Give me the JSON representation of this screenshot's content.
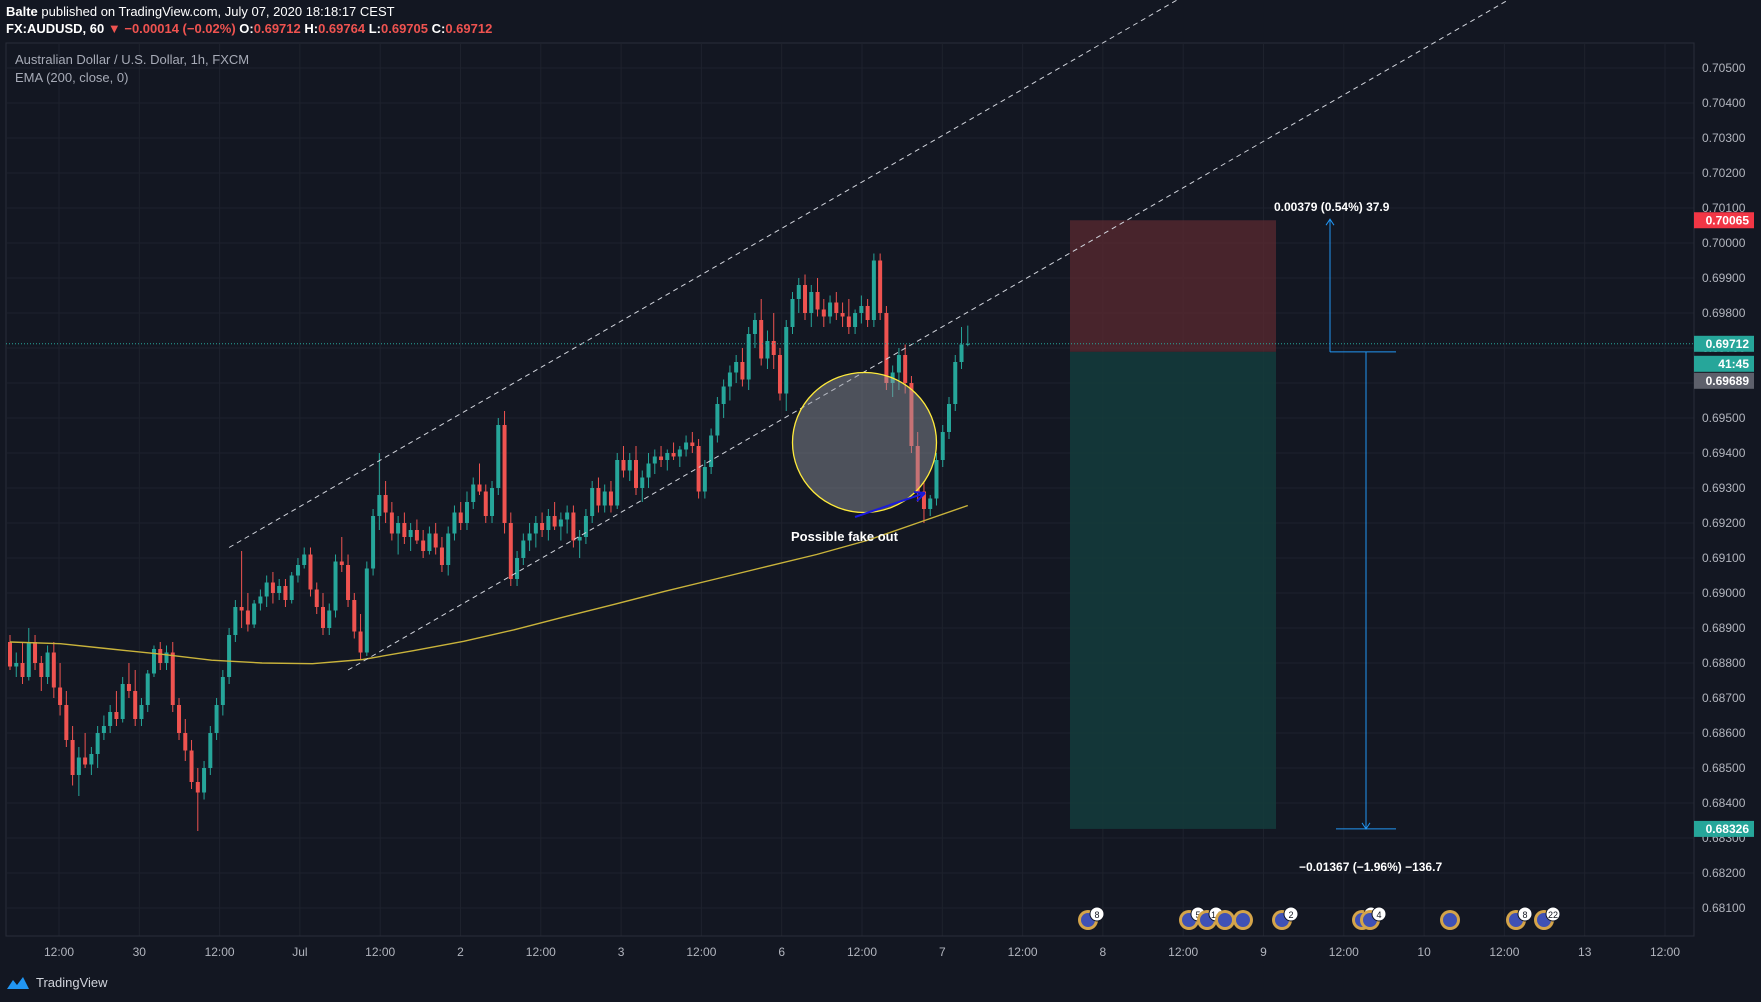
{
  "header": {
    "author": "Balte",
    "published_text": "published on TradingView.com, July 07, 2020 18:18:17 CEST",
    "symbol": "FX:AUDUSD, 60",
    "change": "▼ −0.00014 (−0.02%)",
    "o_label": "O:",
    "o_value": "0.69712",
    "h_label": "H:",
    "h_value": "0.69764",
    "l_label": "L:",
    "l_value": "0.69705",
    "c_label": "C:",
    "c_value": "0.69712"
  },
  "legend": {
    "title": "Australian Dollar / U.S. Dollar, 1h, FXCM",
    "indicator": "EMA (200, close, 0)"
  },
  "footer": {
    "brand": "TradingView"
  },
  "colors": {
    "background": "#131722",
    "up": "#26a69a",
    "down": "#ef5350",
    "ema": "#c9b33b",
    "grid": "#1e222d",
    "stop_zone": "#5b2a30",
    "target_zone": "#143c3c",
    "circle": "#ffeb3b",
    "arrow": "#1a1adb",
    "measure": "#2196f3"
  },
  "chart_data": {
    "type": "candlestick",
    "title": "Australian Dollar / U.S. Dollar, 1h, FXCM",
    "y_axis": {
      "range": [
        0.68075,
        0.7057
      ],
      "ticks": [
        "0.70500",
        "0.70400",
        "0.70300",
        "0.70200",
        "0.70100",
        "0.70000",
        "0.69900",
        "0.69800",
        "0.69700",
        "0.69600",
        "0.69500",
        "0.69400",
        "0.69300",
        "0.69200",
        "0.69100",
        "0.69000",
        "0.68900",
        "0.68800",
        "0.68700",
        "0.68600",
        "0.68500",
        "0.68400",
        "0.68300",
        "0.68200",
        "0.68100"
      ]
    },
    "x_axis": {
      "labels": [
        "12:00",
        "30",
        "12:00",
        "Jul",
        "12:00",
        "2",
        "12:00",
        "3",
        "12:00",
        "6",
        "12:00",
        "7",
        "12:00",
        "8",
        "12:00",
        "9",
        "12:00",
        "10",
        "12:00",
        "13",
        "12:00"
      ]
    },
    "price_labels": [
      {
        "value": "0.70065",
        "kind": "stop"
      },
      {
        "value": "0.69712",
        "kind": "last"
      },
      {
        "value": "41:45",
        "kind": "countdown"
      },
      {
        "value": "0.69689",
        "kind": "entry"
      },
      {
        "value": "0.68326",
        "kind": "target"
      }
    ],
    "candles": [
      [
        0.6886,
        0.6888,
        0.6878,
        0.6879
      ],
      [
        0.6879,
        0.6883,
        0.6876,
        0.688
      ],
      [
        0.688,
        0.6886,
        0.6874,
        0.6876
      ],
      [
        0.6876,
        0.689,
        0.6875,
        0.6886
      ],
      [
        0.6886,
        0.6888,
        0.6878,
        0.688
      ],
      [
        0.688,
        0.6882,
        0.6872,
        0.6876
      ],
      [
        0.6876,
        0.6885,
        0.6874,
        0.6883
      ],
      [
        0.6883,
        0.6886,
        0.687,
        0.6873
      ],
      [
        0.6873,
        0.688,
        0.6865,
        0.6868
      ],
      [
        0.6868,
        0.6872,
        0.6856,
        0.6858
      ],
      [
        0.6858,
        0.6862,
        0.6845,
        0.6848
      ],
      [
        0.6848,
        0.6856,
        0.6842,
        0.6853
      ],
      [
        0.6853,
        0.686,
        0.685,
        0.6851
      ],
      [
        0.6851,
        0.6856,
        0.6848,
        0.6854
      ],
      [
        0.6854,
        0.6862,
        0.685,
        0.686
      ],
      [
        0.686,
        0.6865,
        0.6858,
        0.6862
      ],
      [
        0.6862,
        0.6868,
        0.686,
        0.6866
      ],
      [
        0.6866,
        0.6872,
        0.6862,
        0.6864
      ],
      [
        0.6864,
        0.6876,
        0.6863,
        0.6874
      ],
      [
        0.6874,
        0.688,
        0.687,
        0.6872
      ],
      [
        0.6872,
        0.6878,
        0.6862,
        0.6864
      ],
      [
        0.6864,
        0.687,
        0.6862,
        0.6868
      ],
      [
        0.6868,
        0.6878,
        0.6866,
        0.6877
      ],
      [
        0.6877,
        0.6885,
        0.6876,
        0.6884
      ],
      [
        0.6884,
        0.6886,
        0.6878,
        0.688
      ],
      [
        0.688,
        0.6885,
        0.6878,
        0.6883
      ],
      [
        0.6883,
        0.6886,
        0.6866,
        0.6868
      ],
      [
        0.6868,
        0.687,
        0.6858,
        0.686
      ],
      [
        0.686,
        0.6864,
        0.6852,
        0.6855
      ],
      [
        0.6855,
        0.6858,
        0.6844,
        0.6846
      ],
      [
        0.6846,
        0.685,
        0.6832,
        0.6843
      ],
      [
        0.6843,
        0.6852,
        0.6841,
        0.685
      ],
      [
        0.685,
        0.6862,
        0.6848,
        0.686
      ],
      [
        0.686,
        0.687,
        0.6858,
        0.6868
      ],
      [
        0.6868,
        0.6878,
        0.6865,
        0.6876
      ],
      [
        0.6876,
        0.689,
        0.6874,
        0.6888
      ],
      [
        0.6888,
        0.6898,
        0.6886,
        0.6896
      ],
      [
        0.6896,
        0.6912,
        0.689,
        0.6895
      ],
      [
        0.6895,
        0.69,
        0.6889,
        0.6891
      ],
      [
        0.6891,
        0.6898,
        0.689,
        0.6897
      ],
      [
        0.6897,
        0.6901,
        0.6895,
        0.6899
      ],
      [
        0.6899,
        0.6905,
        0.6896,
        0.6903
      ],
      [
        0.6903,
        0.6906,
        0.6897,
        0.69
      ],
      [
        0.69,
        0.6904,
        0.6898,
        0.6902
      ],
      [
        0.6902,
        0.6904,
        0.6896,
        0.6898
      ],
      [
        0.6898,
        0.6906,
        0.6897,
        0.6905
      ],
      [
        0.6905,
        0.691,
        0.6903,
        0.6908
      ],
      [
        0.6908,
        0.6913,
        0.6907,
        0.6911
      ],
      [
        0.6911,
        0.6913,
        0.6899,
        0.6901
      ],
      [
        0.6901,
        0.6903,
        0.6894,
        0.6896
      ],
      [
        0.6896,
        0.69,
        0.6888,
        0.689
      ],
      [
        0.689,
        0.6897,
        0.6888,
        0.6895
      ],
      [
        0.6895,
        0.6911,
        0.6893,
        0.6909
      ],
      [
        0.6909,
        0.6916,
        0.6906,
        0.6908
      ],
      [
        0.6908,
        0.6911,
        0.6896,
        0.6898
      ],
      [
        0.6898,
        0.69,
        0.6887,
        0.6889
      ],
      [
        0.6889,
        0.6894,
        0.6881,
        0.6883
      ],
      [
        0.6883,
        0.6909,
        0.6882,
        0.6907
      ],
      [
        0.6907,
        0.6924,
        0.6905,
        0.6922
      ],
      [
        0.6922,
        0.694,
        0.6918,
        0.6928
      ],
      [
        0.6928,
        0.6932,
        0.692,
        0.6923
      ],
      [
        0.6923,
        0.6926,
        0.6915,
        0.6917
      ],
      [
        0.6917,
        0.6922,
        0.6911,
        0.692
      ],
      [
        0.692,
        0.6923,
        0.6914,
        0.6916
      ],
      [
        0.6916,
        0.692,
        0.6912,
        0.6918
      ],
      [
        0.6918,
        0.6921,
        0.6914,
        0.6915
      ],
      [
        0.6915,
        0.6918,
        0.691,
        0.6912
      ],
      [
        0.6912,
        0.6919,
        0.6911,
        0.6917
      ],
      [
        0.6917,
        0.692,
        0.6911,
        0.6913
      ],
      [
        0.6913,
        0.6916,
        0.6906,
        0.6908
      ],
      [
        0.6908,
        0.6919,
        0.6905,
        0.6917
      ],
      [
        0.6917,
        0.6925,
        0.6915,
        0.6923
      ],
      [
        0.6923,
        0.6926,
        0.6918,
        0.692
      ],
      [
        0.692,
        0.6929,
        0.6918,
        0.6926
      ],
      [
        0.6926,
        0.6933,
        0.6924,
        0.6931
      ],
      [
        0.6931,
        0.6937,
        0.6928,
        0.6929
      ],
      [
        0.6929,
        0.6931,
        0.692,
        0.6922
      ],
      [
        0.6922,
        0.6932,
        0.692,
        0.693
      ],
      [
        0.693,
        0.695,
        0.6928,
        0.6948
      ],
      [
        0.6948,
        0.6952,
        0.6917,
        0.692
      ],
      [
        0.692,
        0.6923,
        0.6902,
        0.6904
      ],
      [
        0.6904,
        0.6912,
        0.6902,
        0.691
      ],
      [
        0.691,
        0.6917,
        0.6908,
        0.6915
      ],
      [
        0.6915,
        0.692,
        0.6912,
        0.6917
      ],
      [
        0.6917,
        0.6922,
        0.6913,
        0.692
      ],
      [
        0.692,
        0.6923,
        0.6916,
        0.6918
      ],
      [
        0.6918,
        0.6924,
        0.6915,
        0.6922
      ],
      [
        0.6922,
        0.6926,
        0.6918,
        0.6919
      ],
      [
        0.6919,
        0.6923,
        0.6915,
        0.6921
      ],
      [
        0.6921,
        0.6925,
        0.6917,
        0.6923
      ],
      [
        0.6923,
        0.6925,
        0.6913,
        0.6915
      ],
      [
        0.6915,
        0.6918,
        0.691,
        0.6916
      ],
      [
        0.6916,
        0.6924,
        0.6914,
        0.6922
      ],
      [
        0.6922,
        0.6932,
        0.692,
        0.693
      ],
      [
        0.693,
        0.6933,
        0.6923,
        0.6925
      ],
      [
        0.6925,
        0.6931,
        0.6923,
        0.6929
      ],
      [
        0.6929,
        0.6932,
        0.6923,
        0.6925
      ],
      [
        0.6925,
        0.694,
        0.6924,
        0.6938
      ],
      [
        0.6938,
        0.6942,
        0.6933,
        0.6935
      ],
      [
        0.6935,
        0.694,
        0.6932,
        0.6938
      ],
      [
        0.6938,
        0.6942,
        0.6928,
        0.693
      ],
      [
        0.693,
        0.6935,
        0.6926,
        0.6933
      ],
      [
        0.6933,
        0.694,
        0.693,
        0.6937
      ],
      [
        0.6937,
        0.6941,
        0.6934,
        0.6939
      ],
      [
        0.6939,
        0.6942,
        0.6936,
        0.6938
      ],
      [
        0.6938,
        0.6941,
        0.6935,
        0.694
      ],
      [
        0.694,
        0.6943,
        0.6938,
        0.6939
      ],
      [
        0.6939,
        0.6942,
        0.6936,
        0.6941
      ],
      [
        0.6941,
        0.6945,
        0.6939,
        0.6943
      ],
      [
        0.6943,
        0.6946,
        0.694,
        0.6942
      ],
      [
        0.6942,
        0.6944,
        0.6927,
        0.6929
      ],
      [
        0.6929,
        0.6938,
        0.6927,
        0.6936
      ],
      [
        0.6936,
        0.6947,
        0.6934,
        0.6945
      ],
      [
        0.6945,
        0.6956,
        0.6943,
        0.6954
      ],
      [
        0.6954,
        0.6961,
        0.695,
        0.6959
      ],
      [
        0.6959,
        0.6965,
        0.6955,
        0.6963
      ],
      [
        0.6963,
        0.6968,
        0.696,
        0.6966
      ],
      [
        0.6966,
        0.697,
        0.6959,
        0.6961
      ],
      [
        0.6961,
        0.6976,
        0.6958,
        0.6974
      ],
      [
        0.6974,
        0.698,
        0.697,
        0.6978
      ],
      [
        0.6978,
        0.6984,
        0.6965,
        0.6967
      ],
      [
        0.6967,
        0.6975,
        0.6964,
        0.6972
      ],
      [
        0.6972,
        0.698,
        0.6964,
        0.6968
      ],
      [
        0.6968,
        0.697,
        0.6955,
        0.6957
      ],
      [
        0.6957,
        0.6978,
        0.6952,
        0.6976
      ],
      [
        0.6976,
        0.6986,
        0.6974,
        0.6984
      ],
      [
        0.6984,
        0.699,
        0.698,
        0.6988
      ],
      [
        0.6988,
        0.6991,
        0.6978,
        0.698
      ],
      [
        0.698,
        0.6988,
        0.6976,
        0.6986
      ],
      [
        0.6986,
        0.699,
        0.6979,
        0.6981
      ],
      [
        0.6981,
        0.6984,
        0.6976,
        0.6979
      ],
      [
        0.6979,
        0.6985,
        0.6977,
        0.6983
      ],
      [
        0.6983,
        0.6986,
        0.6978,
        0.698
      ],
      [
        0.698,
        0.6983,
        0.6976,
        0.6979
      ],
      [
        0.6979,
        0.6984,
        0.6974,
        0.6976
      ],
      [
        0.6976,
        0.6981,
        0.6974,
        0.698
      ],
      [
        0.698,
        0.6985,
        0.6977,
        0.6982
      ],
      [
        0.6982,
        0.6984,
        0.6976,
        0.6978
      ],
      [
        0.6978,
        0.6997,
        0.6976,
        0.6995
      ],
      [
        0.6995,
        0.6997,
        0.6978,
        0.698
      ],
      [
        0.698,
        0.6982,
        0.6958,
        0.696
      ],
      [
        0.696,
        0.6965,
        0.6956,
        0.6963
      ],
      [
        0.6963,
        0.697,
        0.6958,
        0.6968
      ],
      [
        0.6968,
        0.6971,
        0.6957,
        0.696
      ],
      [
        0.696,
        0.6962,
        0.694,
        0.6942
      ],
      [
        0.6942,
        0.6946,
        0.6926,
        0.6929
      ],
      [
        0.6929,
        0.6932,
        0.692,
        0.6924
      ],
      [
        0.6924,
        0.6928,
        0.6922,
        0.6927
      ],
      [
        0.6927,
        0.694,
        0.6925,
        0.6938
      ],
      [
        0.6938,
        0.6948,
        0.6936,
        0.6946
      ],
      [
        0.6946,
        0.6956,
        0.6944,
        0.6954
      ],
      [
        0.6954,
        0.6968,
        0.6952,
        0.6966
      ],
      [
        0.6966,
        0.6976,
        0.6964,
        0.6971
      ],
      [
        0.6971,
        0.69764,
        0.69705,
        0.69712
      ]
    ],
    "ema_200": [
      0.6886,
      0.68855,
      0.6884,
      0.68825,
      0.68808,
      0.688,
      0.68798,
      0.6881,
      0.68835,
      0.68862,
      0.68895,
      0.68932,
      0.68968,
      0.69005,
      0.6904,
      0.69075,
      0.6911,
      0.6915,
      0.692,
      0.6925
    ]
  },
  "annotations": {
    "fakeout_label": "Possible fake out",
    "profit_measure": "0.00379 (0.54%) 37.9",
    "loss_measure": "−0.01367 (−1.96%) −136.7"
  },
  "events": [
    {
      "count": "8"
    },
    {
      "count": "5"
    },
    {
      "count": "14"
    },
    {
      "count": ""
    },
    {
      "count": ""
    },
    {
      "count": "2"
    },
    {
      "count": "27"
    },
    {
      "count": "4"
    },
    {
      "count": ""
    },
    {
      "count": "8"
    },
    {
      "count": "22"
    }
  ]
}
